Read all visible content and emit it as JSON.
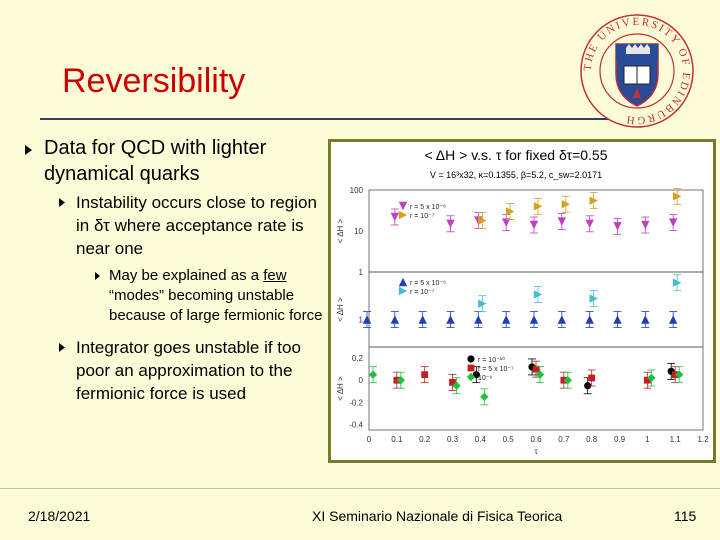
{
  "slide": {
    "title": "Reversibility",
    "bullets": [
      {
        "text": "Data for QCD with lighter dynamical quarks"
      },
      {
        "text": "Instability occurs close to region in δτ where acceptance rate is near one"
      },
      {
        "text_before": "May be explained as a ",
        "underlined": "few",
        "text_after": " “modes” becoming unstable because of large fermionic force"
      },
      {
        "text": "Integrator goes unstable if too poor an approximation to the fermionic force is used"
      }
    ],
    "footer": {
      "date": "2/18/2021",
      "center": "XI Seminario Nazionale di Fisica Teorica",
      "page": "115"
    },
    "logo": {
      "ring_text": "THE UNIVERSITY OF EDINBURGH"
    }
  },
  "chart_data": {
    "type": "scatter",
    "title": "< ΔH > v.s. τ for fixed δτ=0.55",
    "subtitle": "V = 16³x32, κ=0.1355, β=5.2, c_sw=2.0171",
    "x_tick_labels": [
      "0",
      "0.1",
      "0.2",
      "0.3",
      "0.4",
      "0.5",
      "0.6",
      "0.7",
      "0.8",
      "0.9",
      "1",
      "1.1",
      "1.2"
    ],
    "xlabel": "τ",
    "xlim": [
      0,
      1.2
    ],
    "panels": [
      {
        "ylabel": "< ΔH >",
        "tick_labels": [
          "100",
          "10",
          "1"
        ],
        "series": [
          {
            "name": "r = 5 x 10⁻⁶",
            "color": "#c040c0",
            "marker": "triangle-down",
            "x": [
              0.1,
              0.3,
              0.4,
              0.5,
              0.6,
              0.7,
              0.8,
              0.9,
              1.0,
              1.1
            ],
            "y": [
              22,
              15,
              18,
              16,
              14,
              17,
              15,
              13,
              14,
              16
            ]
          },
          {
            "name": "r = 10⁻⁷",
            "color": "#d4a020",
            "marker": "triangle-right",
            "x": [
              0.4,
              0.5,
              0.6,
              0.7,
              0.8,
              1.1
            ],
            "y": [
              18,
              30,
              40,
              45,
              55,
              70
            ]
          }
        ]
      },
      {
        "ylabel": "< ΔH >",
        "tick_labels": [
          "1"
        ],
        "series": [
          {
            "name": "r = 5 x 10⁻⁶",
            "color": "#2040b0",
            "marker": "triangle-up",
            "x": [
              0,
              0.1,
              0.2,
              0.3,
              0.4,
              0.5,
              0.6,
              0.7,
              0.8,
              0.9,
              1.0,
              1.1
            ],
            "y": [
              1,
              1,
              1,
              1,
              1,
              1,
              1,
              1,
              1,
              1,
              1,
              1
            ]
          },
          {
            "name": "r = 10⁻⁷",
            "color": "#40c0d0",
            "marker": "triangle-right",
            "x": [
              0.4,
              0.6,
              0.8,
              1.1
            ],
            "y": [
              2,
              3,
              2.5,
              5
            ]
          }
        ]
      },
      {
        "ylabel": "< ΔH >",
        "tick_labels": [
          "0.2",
          "0",
          "-0.2",
          "-0.4"
        ],
        "series": [
          {
            "name": "r = 10⁻¹⁰",
            "color": "#000000",
            "marker": "circle",
            "x": [
              0.4,
              0.6,
              0.8,
              1.1
            ],
            "y": [
              0.05,
              0.12,
              -0.05,
              0.08
            ]
          },
          {
            "name": "r = 5 x 10⁻⁷",
            "color": "#c02020",
            "marker": "square",
            "x": [
              0.1,
              0.2,
              0.3,
              0.6,
              0.7,
              0.8,
              1.0,
              1.1
            ],
            "y": [
              0,
              0.05,
              -0.02,
              0.1,
              0,
              0.02,
              0,
              0.05
            ]
          },
          {
            "name": "10⁻⁶",
            "color": "#20c040",
            "marker": "diamond",
            "x": [
              0,
              0.1,
              0.3,
              0.4,
              0.6,
              0.7,
              1.0,
              1.1
            ],
            "y": [
              0.05,
              0,
              -0.05,
              -0.15,
              0.05,
              0,
              0.02,
              0.05
            ]
          }
        ]
      }
    ]
  }
}
